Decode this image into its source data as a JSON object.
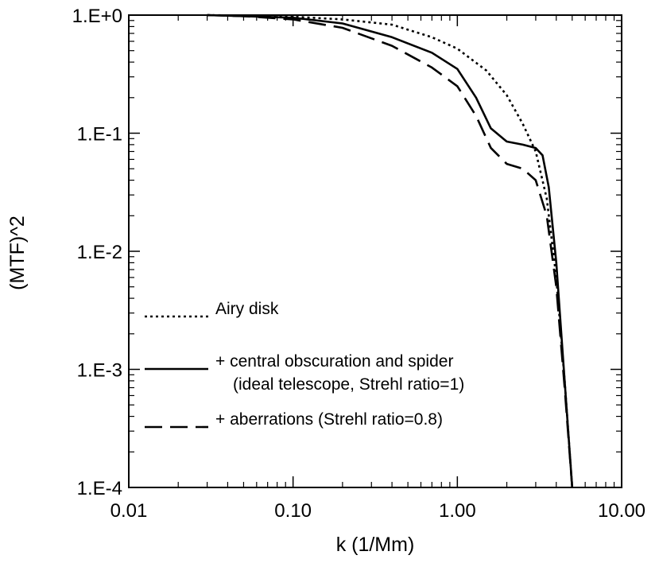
{
  "chart_data": {
    "type": "line",
    "title": "",
    "xlabel": "k (1/Mm)",
    "ylabel": "(MTF)^2",
    "xscale": "log",
    "yscale": "log",
    "xlim": [
      0.01,
      10.0
    ],
    "ylim": [
      0.0001,
      1.0
    ],
    "grid": false,
    "x_ticks": [
      {
        "value": 0.01,
        "label": "0.01"
      },
      {
        "value": 0.1,
        "label": "0.10"
      },
      {
        "value": 1.0,
        "label": "1.00"
      },
      {
        "value": 10.0,
        "label": "10.00"
      }
    ],
    "y_ticks": [
      {
        "value": 1.0,
        "label": "1.E+0"
      },
      {
        "value": 0.1,
        "label": "1.E-1"
      },
      {
        "value": 0.01,
        "label": "1.E-2"
      },
      {
        "value": 0.001,
        "label": "1.E-3"
      },
      {
        "value": 0.0001,
        "label": "1.E-4"
      }
    ],
    "legend_position": "lower-left",
    "series": [
      {
        "name": "Airy disk",
        "style": "dotted",
        "color": "#000000",
        "x": [
          0.03,
          0.05,
          0.1,
          0.2,
          0.4,
          0.7,
          1.0,
          1.5,
          2.0,
          2.5,
          3.0,
          3.5,
          4.0,
          4.5,
          5.0
        ],
        "y": [
          1.0,
          0.99,
          0.97,
          0.92,
          0.83,
          0.65,
          0.52,
          0.34,
          0.21,
          0.12,
          0.07,
          0.028,
          0.006,
          0.0008,
          0.0001
        ]
      },
      {
        "name": "+ central obscuration and spider",
        "name_line2": "(ideal telescope, Strehl ratio=1)",
        "style": "solid",
        "color": "#000000",
        "x": [
          0.03,
          0.05,
          0.1,
          0.2,
          0.4,
          0.7,
          1.0,
          1.3,
          1.6,
          2.0,
          2.5,
          3.0,
          3.3,
          3.6,
          4.0,
          4.5,
          5.0
        ],
        "y": [
          1.0,
          0.98,
          0.95,
          0.85,
          0.65,
          0.48,
          0.35,
          0.2,
          0.11,
          0.085,
          0.08,
          0.075,
          0.065,
          0.035,
          0.008,
          0.0008,
          0.0001
        ]
      },
      {
        "name": "+ aberrations (Strehl ratio=0.8)",
        "style": "dashed",
        "color": "#000000",
        "x": [
          0.03,
          0.05,
          0.1,
          0.2,
          0.4,
          0.7,
          1.0,
          1.3,
          1.6,
          2.0,
          2.5,
          3.0,
          3.5,
          4.0,
          4.5,
          5.0
        ],
        "y": [
          1.0,
          0.98,
          0.92,
          0.78,
          0.55,
          0.36,
          0.25,
          0.14,
          0.075,
          0.055,
          0.05,
          0.04,
          0.02,
          0.005,
          0.0007,
          0.0001
        ]
      }
    ]
  }
}
